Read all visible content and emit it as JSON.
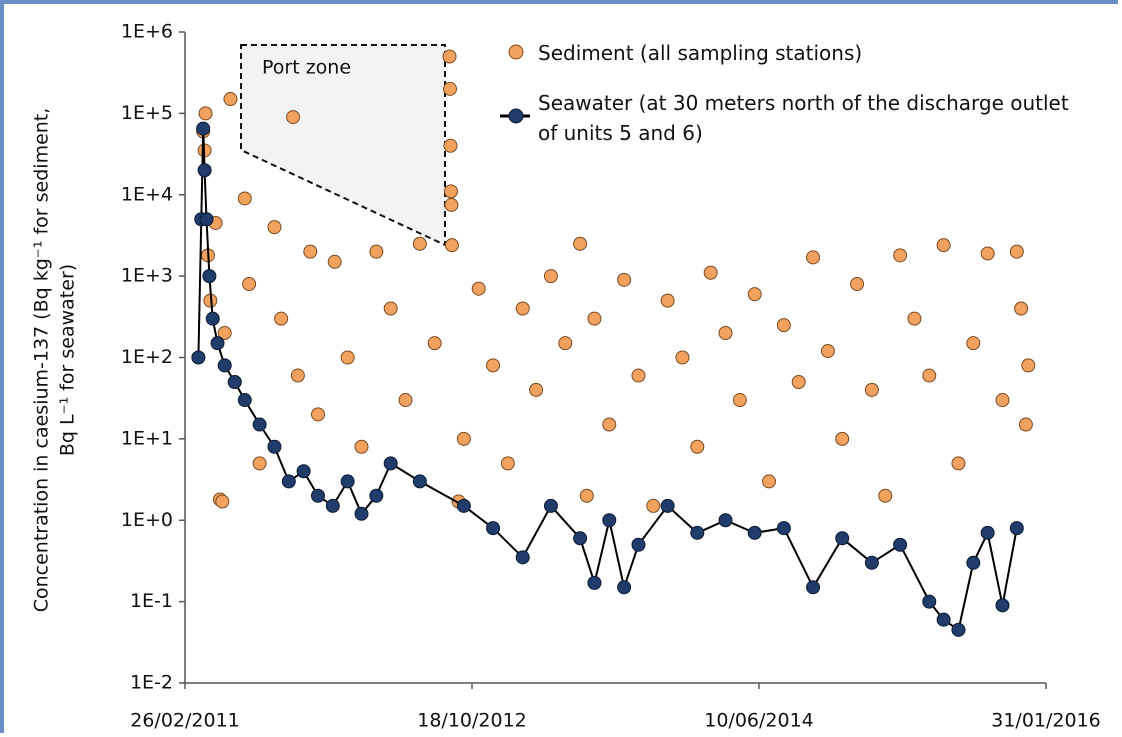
{
  "chart_data": {
    "type": "scatter",
    "y_label_lines": [
      "Concentration in caesium-137 (Bq kg⁻¹ for sediment,",
      "Bq L⁻¹ for seawater)"
    ],
    "annotation": "Port zone",
    "yscale": "log",
    "xlim": [
      "2011-02-26",
      "2016-01-31"
    ],
    "xticks": [
      {
        "value": "2011-02-26",
        "label": "26/02/2011"
      },
      {
        "value": "2012-10-18",
        "label": "18/10/2012"
      },
      {
        "value": "2014-06-10",
        "label": "10/06/2014"
      },
      {
        "value": "2016-01-31",
        "label": "31/01/2016"
      }
    ],
    "ylim": [
      0.01,
      1000000
    ],
    "yticks": [
      {
        "value": 0.01,
        "label": "1E-2"
      },
      {
        "value": 0.1,
        "label": "1E-1"
      },
      {
        "value": 1,
        "label": "1E+0"
      },
      {
        "value": 10,
        "label": "1E+1"
      },
      {
        "value": 100,
        "label": "1E+2"
      },
      {
        "value": 1000,
        "label": "1E+3"
      },
      {
        "value": 10000,
        "label": "1E+4"
      },
      {
        "value": 100000,
        "label": "1E+5"
      },
      {
        "value": 1000000,
        "label": "1E+6"
      }
    ],
    "series": [
      {
        "name": "Sediment (all sampling stations)",
        "color": "#f2a25e",
        "line": false,
        "x": [
          "2011-04-05",
          "2011-04-10",
          "2011-04-08",
          "2011-04-15",
          "2011-04-20",
          "2011-05-01",
          "2011-05-10",
          "2011-05-15",
          "2011-05-20",
          "2011-06-01",
          "2011-06-10",
          "2011-07-01",
          "2011-07-10",
          "2011-08-01",
          "2011-09-01",
          "2011-09-15",
          "2011-10-10",
          "2011-10-20",
          "2011-11-15",
          "2011-12-01",
          "2012-01-05",
          "2012-02-01",
          "2012-03-01",
          "2012-04-01",
          "2012-05-01",
          "2012-06-01",
          "2012-07-01",
          "2012-08-01",
          "2012-09-01",
          "2012-09-02",
          "2012-09-03",
          "2012-09-04",
          "2012-09-05",
          "2012-09-06",
          "2012-09-20",
          "2012-10-01",
          "2012-11-01",
          "2012-12-01",
          "2013-01-01",
          "2013-02-01",
          "2013-03-01",
          "2013-04-01",
          "2013-05-01",
          "2013-06-01",
          "2013-06-15",
          "2013-07-01",
          "2013-08-01",
          "2013-09-01",
          "2013-10-01",
          "2013-11-01",
          "2013-12-01",
          "2014-01-01",
          "2014-02-01",
          "2014-03-01",
          "2014-04-01",
          "2014-05-01",
          "2014-06-01",
          "2014-07-01",
          "2014-08-01",
          "2014-09-01",
          "2014-10-01",
          "2014-11-01",
          "2014-12-01",
          "2015-01-01",
          "2015-02-01",
          "2015-03-01",
          "2015-04-01",
          "2015-05-01",
          "2015-06-01",
          "2015-07-01",
          "2015-08-01",
          "2015-09-01",
          "2015-10-01",
          "2015-11-01",
          "2015-12-01",
          "2015-12-10",
          "2015-12-20",
          "2015-12-25"
        ],
        "values": [
          60000,
          100000,
          35000,
          1800,
          500,
          4500,
          1.8,
          1.7,
          200,
          150000,
          50,
          9000,
          800,
          5,
          4000,
          300,
          90000,
          60,
          2000,
          20,
          1500,
          100,
          8,
          2000,
          400,
          30,
          2500,
          150,
          500000,
          200000,
          40000,
          11000,
          7500,
          2400,
          1.7,
          10,
          700,
          80,
          5,
          400,
          40,
          1000,
          150,
          2500,
          2,
          300,
          15,
          900,
          60,
          1.5,
          500,
          100,
          8,
          1100,
          200,
          30,
          600,
          3,
          250,
          50,
          1700,
          120,
          10,
          800,
          40,
          2,
          1800,
          300,
          60,
          2400,
          5,
          150,
          1900,
          30,
          2000,
          400,
          15,
          80
        ]
      },
      {
        "name": "Seawater (at 30 meters north of the discharge outlet of units 5 and 6)",
        "color": "#1f3c6b",
        "line": true,
        "x": [
          "2011-03-26",
          "2011-04-01",
          "2011-04-05",
          "2011-04-08",
          "2011-04-12",
          "2011-04-18",
          "2011-04-25",
          "2011-05-05",
          "2011-05-20",
          "2011-06-10",
          "2011-07-01",
          "2011-08-01",
          "2011-09-01",
          "2011-10-01",
          "2011-11-01",
          "2011-12-01",
          "2012-01-01",
          "2012-02-01",
          "2012-03-01",
          "2012-04-01",
          "2012-05-01",
          "2012-07-01",
          "2012-10-01",
          "2012-12-01",
          "2013-02-01",
          "2013-04-01",
          "2013-06-01",
          "2013-07-01",
          "2013-08-01",
          "2013-09-01",
          "2013-10-01",
          "2013-12-01",
          "2014-02-01",
          "2014-04-01",
          "2014-06-01",
          "2014-08-01",
          "2014-10-01",
          "2014-12-01",
          "2015-02-01",
          "2015-04-01",
          "2015-06-01",
          "2015-07-01",
          "2015-08-01",
          "2015-09-01",
          "2015-10-01",
          "2015-11-01",
          "2015-12-01"
        ],
        "values": [
          100,
          5000,
          65000,
          20000,
          5000,
          1000,
          300,
          150,
          80,
          50,
          30,
          15,
          8,
          3,
          4,
          2,
          1.5,
          3,
          1.2,
          2,
          5,
          3,
          1.5,
          0.8,
          0.35,
          1.5,
          0.6,
          0.17,
          1,
          0.15,
          0.5,
          1.5,
          0.7,
          1,
          0.7,
          0.8,
          0.15,
          0.6,
          0.3,
          0.5,
          0.1,
          0.06,
          0.045,
          0.3,
          0.7,
          0.09,
          0.8
        ]
      }
    ]
  }
}
